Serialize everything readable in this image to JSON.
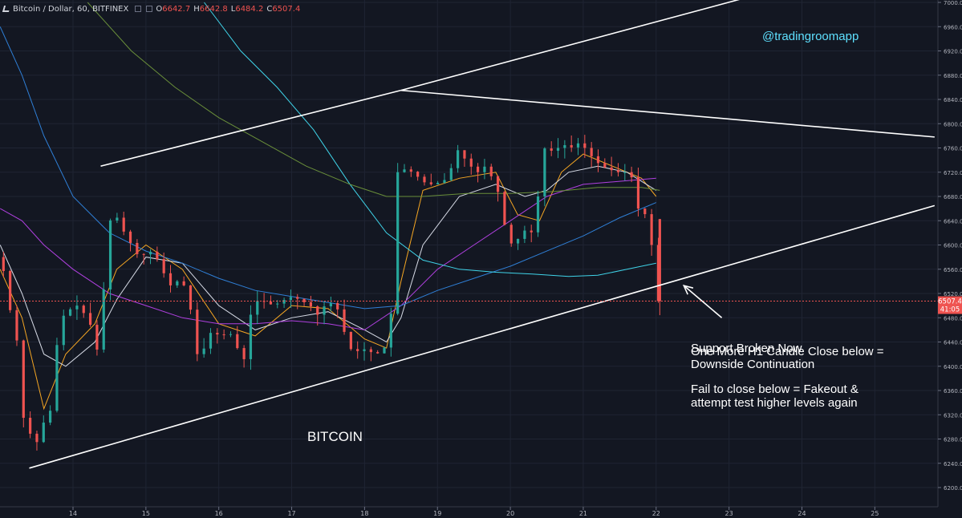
{
  "header": {
    "symbol": "Bitcoin / Dollar, 60, BITFINEX",
    "open_label": "O",
    "open_value": "6642.7",
    "high_label": "H",
    "high_value": "6642.8",
    "low_label": "L",
    "low_value": "6484.2",
    "close_label": "C",
    "close_value": "6507.4"
  },
  "colors": {
    "background": "#131722",
    "up": "#26a69a",
    "down": "#ef5350",
    "trendline": "#ffffff",
    "watermark": "#5ee0ff"
  },
  "chart_data": {
    "type": "candlestick",
    "title": "",
    "ylim": [
      6180,
      7010
    ],
    "y_ticks": [
      "6200.0",
      "6240.0",
      "6280.0",
      "6320.0",
      "6360.0",
      "6400.0",
      "6440.0",
      "6480.0",
      "6520.0",
      "6560.0",
      "6600.0",
      "6640.0",
      "6680.0",
      "6720.0",
      "6760.0",
      "6800.0",
      "6840.0",
      "6880.0",
      "6920.0",
      "6960.0",
      "7000.0"
    ],
    "x_ticks": [
      "14",
      "15",
      "16",
      "17",
      "18",
      "19",
      "20",
      "21",
      "22",
      "23",
      "24",
      "25"
    ],
    "x_tick_day": [
      14,
      15,
      16,
      17,
      18,
      19,
      20,
      21,
      22,
      23,
      24,
      25
    ],
    "xlim_days": [
      13.0,
      25.82
    ],
    "last_price_label": "6507.4",
    "countdown_label": "41:05",
    "price_series": {
      "name": "",
      "points": [
        [
          13.0,
          6580
        ],
        [
          13.1,
          6555
        ],
        [
          13.2,
          6480
        ],
        [
          13.3,
          6430
        ],
        [
          13.35,
          6320
        ],
        [
          13.45,
          6290
        ],
        [
          13.55,
          6275
        ],
        [
          13.65,
          6310
        ],
        [
          13.75,
          6330
        ],
        [
          13.85,
          6470
        ],
        [
          13.95,
          6490
        ],
        [
          14.1,
          6500
        ],
        [
          14.25,
          6480
        ],
        [
          14.35,
          6445
        ],
        [
          14.4,
          6410
        ],
        [
          14.45,
          6490
        ],
        [
          14.5,
          6600
        ],
        [
          14.55,
          6640
        ],
        [
          14.65,
          6645
        ],
        [
          14.75,
          6620
        ],
        [
          14.85,
          6600
        ],
        [
          14.95,
          6580
        ],
        [
          15.1,
          6590
        ],
        [
          15.25,
          6570
        ],
        [
          15.35,
          6530
        ],
        [
          15.45,
          6540
        ],
        [
          15.55,
          6540
        ],
        [
          15.65,
          6500
        ],
        [
          15.75,
          6420
        ],
        [
          15.85,
          6430
        ],
        [
          15.95,
          6460
        ],
        [
          16.05,
          6450
        ],
        [
          16.2,
          6455
        ],
        [
          16.3,
          6430
        ],
        [
          16.4,
          6410
        ],
        [
          16.5,
          6500
        ],
        [
          16.6,
          6510
        ],
        [
          16.7,
          6505
        ],
        [
          16.8,
          6500
        ],
        [
          16.95,
          6510
        ],
        [
          17.05,
          6515
        ],
        [
          17.15,
          6510
        ],
        [
          17.3,
          6500
        ],
        [
          17.4,
          6485
        ],
        [
          17.5,
          6500
        ],
        [
          17.6,
          6505
        ],
        [
          17.7,
          6490
        ],
        [
          17.8,
          6440
        ],
        [
          17.9,
          6420
        ],
        [
          18.0,
          6430
        ],
        [
          18.1,
          6425
        ],
        [
          18.2,
          6420
        ],
        [
          18.3,
          6425
        ],
        [
          18.4,
          6460
        ],
        [
          18.45,
          6620
        ],
        [
          18.5,
          6720
        ],
        [
          18.6,
          6725
        ],
        [
          18.7,
          6720
        ],
        [
          18.8,
          6710
        ],
        [
          18.9,
          6700
        ],
        [
          19.0,
          6700
        ],
        [
          19.1,
          6705
        ],
        [
          19.2,
          6710
        ],
        [
          19.3,
          6760
        ],
        [
          19.4,
          6745
        ],
        [
          19.5,
          6730
        ],
        [
          19.6,
          6720
        ],
        [
          19.7,
          6730
        ],
        [
          19.8,
          6710
        ],
        [
          19.9,
          6680
        ],
        [
          19.95,
          6640
        ],
        [
          20.0,
          6620
        ],
        [
          20.1,
          6590
        ],
        [
          20.15,
          6610
        ],
        [
          20.25,
          6625
        ],
        [
          20.35,
          6620
        ],
        [
          20.4,
          6640
        ],
        [
          20.45,
          6720
        ],
        [
          20.5,
          6760
        ],
        [
          20.6,
          6755
        ],
        [
          20.7,
          6760
        ],
        [
          20.8,
          6765
        ],
        [
          20.9,
          6760
        ],
        [
          21.0,
          6770
        ],
        [
          21.1,
          6755
        ],
        [
          21.2,
          6740
        ],
        [
          21.3,
          6730
        ],
        [
          21.4,
          6725
        ],
        [
          21.5,
          6720
        ],
        [
          21.6,
          6720
        ],
        [
          21.7,
          6720
        ],
        [
          21.75,
          6670
        ],
        [
          21.8,
          6660
        ],
        [
          21.9,
          6650
        ],
        [
          21.95,
          6640
        ],
        [
          22.0,
          6580
        ],
        [
          22.05,
          6507.4
        ]
      ]
    },
    "moving_averages": [
      {
        "name": "",
        "color": "#f5a623",
        "points": [
          [
            13.0,
            6560
          ],
          [
            13.3,
            6480
          ],
          [
            13.6,
            6330
          ],
          [
            13.9,
            6420
          ],
          [
            14.3,
            6470
          ],
          [
            14.6,
            6560
          ],
          [
            15.0,
            6600
          ],
          [
            15.5,
            6560
          ],
          [
            16.0,
            6470
          ],
          [
            16.5,
            6450
          ],
          [
            17.0,
            6500
          ],
          [
            17.5,
            6495
          ],
          [
            18.0,
            6445
          ],
          [
            18.3,
            6430
          ],
          [
            18.5,
            6540
          ],
          [
            18.8,
            6690
          ],
          [
            19.3,
            6710
          ],
          [
            19.8,
            6720
          ],
          [
            20.1,
            6650
          ],
          [
            20.4,
            6640
          ],
          [
            20.7,
            6720
          ],
          [
            21.0,
            6750
          ],
          [
            21.4,
            6730
          ],
          [
            21.8,
            6710
          ],
          [
            22.0,
            6680
          ]
        ]
      },
      {
        "name": "",
        "color": "#d7dbe6",
        "points": [
          [
            13.0,
            6600
          ],
          [
            13.3,
            6520
          ],
          [
            13.6,
            6420
          ],
          [
            13.9,
            6400
          ],
          [
            14.3,
            6440
          ],
          [
            14.6,
            6510
          ],
          [
            15.0,
            6580
          ],
          [
            15.5,
            6570
          ],
          [
            16.0,
            6500
          ],
          [
            16.5,
            6460
          ],
          [
            17.0,
            6480
          ],
          [
            17.5,
            6490
          ],
          [
            18.0,
            6460
          ],
          [
            18.3,
            6440
          ],
          [
            18.5,
            6480
          ],
          [
            18.8,
            6600
          ],
          [
            19.3,
            6680
          ],
          [
            19.8,
            6700
          ],
          [
            20.2,
            6680
          ],
          [
            20.5,
            6690
          ],
          [
            20.8,
            6720
          ],
          [
            21.2,
            6730
          ],
          [
            21.6,
            6720
          ],
          [
            22.0,
            6690
          ]
        ]
      },
      {
        "name": "",
        "color": "#b040e0",
        "points": [
          [
            13.0,
            6660
          ],
          [
            13.3,
            6640
          ],
          [
            13.6,
            6600
          ],
          [
            14.0,
            6560
          ],
          [
            14.5,
            6520
          ],
          [
            15.0,
            6500
          ],
          [
            15.5,
            6480
          ],
          [
            16.0,
            6470
          ],
          [
            16.5,
            6470
          ],
          [
            17.0,
            6475
          ],
          [
            17.5,
            6470
          ],
          [
            18.0,
            6460
          ],
          [
            18.5,
            6500
          ],
          [
            19.0,
            6560
          ],
          [
            19.5,
            6600
          ],
          [
            20.0,
            6640
          ],
          [
            20.5,
            6680
          ],
          [
            21.0,
            6700
          ],
          [
            21.5,
            6705
          ],
          [
            22.0,
            6710
          ]
        ]
      },
      {
        "name": "",
        "color": "#2f7fd6",
        "points": [
          [
            13.0,
            6960
          ],
          [
            13.3,
            6880
          ],
          [
            13.6,
            6780
          ],
          [
            14.0,
            6680
          ],
          [
            14.5,
            6620
          ],
          [
            15.0,
            6590
          ],
          [
            15.5,
            6570
          ],
          [
            16.0,
            6545
          ],
          [
            16.5,
            6525
          ],
          [
            17.0,
            6515
          ],
          [
            17.5,
            6505
          ],
          [
            18.0,
            6495
          ],
          [
            18.5,
            6500
          ],
          [
            19.0,
            6525
          ],
          [
            19.5,
            6545
          ],
          [
            20.0,
            6565
          ],
          [
            20.5,
            6590
          ],
          [
            21.0,
            6615
          ],
          [
            21.5,
            6645
          ],
          [
            22.0,
            6670
          ]
        ]
      },
      {
        "name": "",
        "color": "#3fd3e8",
        "points": [
          [
            15.8,
            7000
          ],
          [
            16.3,
            6920
          ],
          [
            16.8,
            6860
          ],
          [
            17.3,
            6790
          ],
          [
            17.8,
            6700
          ],
          [
            18.3,
            6620
          ],
          [
            18.8,
            6575
          ],
          [
            19.3,
            6560
          ],
          [
            19.8,
            6555
          ],
          [
            20.3,
            6552
          ],
          [
            20.8,
            6548
          ],
          [
            21.2,
            6550
          ],
          [
            21.6,
            6560
          ],
          [
            22.0,
            6570
          ]
        ]
      },
      {
        "name": "",
        "color": "#6a8f3a",
        "points": [
          [
            14.2,
            7000
          ],
          [
            14.8,
            6920
          ],
          [
            15.4,
            6860
          ],
          [
            16.0,
            6810
          ],
          [
            16.6,
            6770
          ],
          [
            17.2,
            6730
          ],
          [
            17.8,
            6700
          ],
          [
            18.3,
            6680
          ],
          [
            18.8,
            6680
          ],
          [
            19.4,
            6685
          ],
          [
            20.0,
            6685
          ],
          [
            20.6,
            6688
          ],
          [
            21.2,
            6695
          ],
          [
            21.8,
            6695
          ],
          [
            22.05,
            6690
          ]
        ]
      }
    ],
    "trendlines": [
      {
        "from": [
          13.4,
          6232
        ],
        "to": [
          25.82,
          6665
        ]
      },
      {
        "from": [
          14.38,
          6730
        ],
        "to": [
          18.5,
          6855
        ]
      },
      {
        "from": [
          18.5,
          6855
        ],
        "to": [
          23.3,
          7010
        ]
      },
      {
        "from": [
          18.5,
          6855
        ],
        "to": [
          25.82,
          6778
        ]
      }
    ],
    "annotations": {
      "watermark": "@tradingroomapp",
      "asset_label": "BITCOIN",
      "note_1": "Support Broken Now",
      "note_2a": "One More H1 Candle Close below =",
      "note_2b": "Downside Continuation",
      "note_3a": "Fail to close below = Fakeout &",
      "note_3b": "attempt test higher levels again"
    },
    "arrow": {
      "tail": [
        22.9,
        6480
      ],
      "head": [
        22.38,
        6533
      ]
    }
  }
}
